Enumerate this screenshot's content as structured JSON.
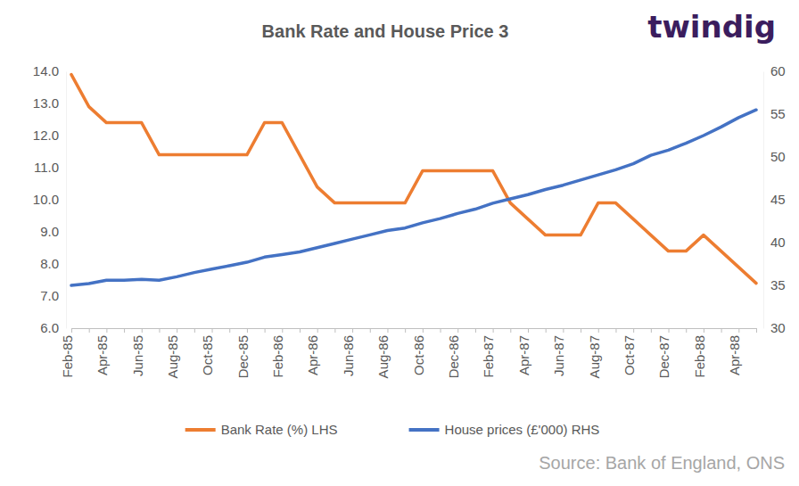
{
  "chart_data": {
    "type": "line",
    "title": "Bank Rate and House Price 3",
    "logo": "twindig",
    "source": "Source: Bank of England, ONS",
    "categories": [
      "Feb-85",
      null,
      "Apr-85",
      null,
      "Jun-85",
      null,
      "Aug-85",
      null,
      "Oct-85",
      null,
      "Dec-85",
      null,
      "Feb-86",
      null,
      "Apr-86",
      null,
      "Jun-86",
      null,
      "Aug-86",
      null,
      "Oct-86",
      null,
      "Dec-86",
      null,
      "Feb-87",
      null,
      "Apr-87",
      null,
      "Jun-87",
      null,
      "Aug-87",
      null,
      "Oct-87",
      null,
      "Dec-87",
      null,
      "Feb-88",
      null,
      "Apr-88",
      null
    ],
    "series": [
      {
        "name": "Bank Rate (%) LHS",
        "color": "#ED7D31",
        "values": [
          13.9,
          12.9,
          12.4,
          12.4,
          12.4,
          11.4,
          11.4,
          11.4,
          11.4,
          11.4,
          11.4,
          12.4,
          12.4,
          11.4,
          10.4,
          9.9,
          9.9,
          9.9,
          9.9,
          9.9,
          10.9,
          10.9,
          10.9,
          10.9,
          10.9,
          9.9,
          9.4,
          8.9,
          8.9,
          8.9,
          9.9,
          9.9,
          9.4,
          8.9,
          8.4,
          8.4,
          8.9,
          8.4,
          7.9,
          7.4
        ]
      },
      {
        "name": "House prices (£'000) RHS",
        "color": "#4472C4",
        "axis": "y2",
        "values": [
          35.0,
          35.2,
          35.6,
          35.6,
          35.7,
          35.6,
          36.0,
          36.5,
          36.9,
          37.3,
          37.7,
          38.3,
          38.6,
          38.9,
          39.4,
          39.9,
          40.4,
          40.9,
          41.4,
          41.7,
          42.3,
          42.8,
          43.4,
          43.9,
          44.6,
          45.1,
          45.6,
          46.2,
          46.7,
          47.3,
          47.9,
          48.5,
          49.2,
          50.2,
          50.8,
          51.6,
          52.5,
          53.5,
          54.6,
          55.5
        ]
      }
    ],
    "ylim": [
      6,
      14
    ],
    "yticks": [
      {
        "value": 6,
        "label": "6.0"
      },
      {
        "value": 7,
        "label": "7.0"
      },
      {
        "value": 8,
        "label": "8.0"
      },
      {
        "value": 9,
        "label": "9.0"
      },
      {
        "value": 10,
        "label": "10.0"
      },
      {
        "value": 11,
        "label": "11.0"
      },
      {
        "value": 12,
        "label": "12.0"
      },
      {
        "value": 13,
        "label": "13.0"
      },
      {
        "value": 14,
        "label": "14.0"
      }
    ],
    "y2lim": [
      30,
      60
    ],
    "y2ticks": [
      30,
      35,
      40,
      45,
      50,
      55,
      60
    ],
    "legend": "bottom",
    "grid": false
  }
}
